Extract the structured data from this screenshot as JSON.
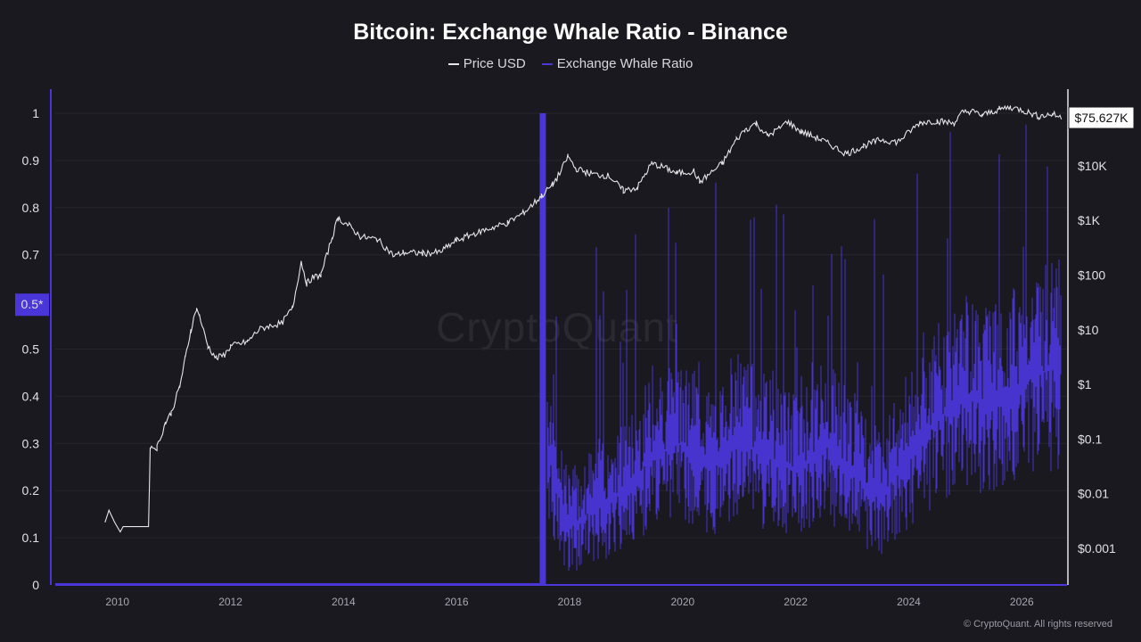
{
  "title": "Bitcoin: Exchange Whale Ratio - Binance",
  "legend": [
    {
      "label": "Price USD",
      "color": "#e6e6ea"
    },
    {
      "label": "Exchange Whale Ratio",
      "color": "#4a36d8"
    }
  ],
  "watermark": "CryptoQuant",
  "copyright": "© CryptoQuant. All rights reserved",
  "chart_data": {
    "type": "line",
    "title": "Bitcoin: Exchange Whale Ratio - Binance",
    "x_ticks": [
      "2010",
      "2012",
      "2014",
      "2016",
      "2018",
      "2020",
      "2022",
      "2024",
      "2026"
    ],
    "xlim": [
      2008.9,
      2026.8
    ],
    "left_axis": {
      "ticks": [
        "0",
        "0.1",
        "0.2",
        "0.3",
        "0.4",
        "0.5",
        "0.7",
        "0.8",
        "0.9",
        "1"
      ],
      "tick_values": [
        0,
        0.1,
        0.2,
        0.3,
        0.4,
        0.5,
        0.7,
        0.8,
        0.9,
        1
      ],
      "ylim": [
        0,
        1
      ],
      "marker_label": "0.5*",
      "marker_value": 0.595
    },
    "right_axis": {
      "scale": "log",
      "ticks": [
        "$0.001",
        "$0.01",
        "$0.1",
        "$1",
        "$10",
        "$100",
        "$1K",
        "$10K"
      ],
      "tick_values": [
        0.001,
        0.01,
        0.1,
        1,
        10,
        100,
        1000,
        10000
      ],
      "current_price_label": "$75.627K"
    },
    "series": [
      {
        "name": "Price USD",
        "color": "#e6e6ea",
        "axis": "right",
        "x": [
          2009.78,
          2009.85,
          2009.95,
          2010.05,
          2010.1,
          2010.2,
          2010.4,
          2010.55,
          2010.58,
          2010.7,
          2010.85,
          2010.95,
          2011.1,
          2011.2,
          2011.3,
          2011.4,
          2011.45,
          2011.6,
          2011.75,
          2011.9,
          2012.0,
          2012.3,
          2012.5,
          2012.7,
          2012.9,
          2013.1,
          2013.25,
          2013.35,
          2013.45,
          2013.6,
          2013.8,
          2013.9,
          2014.1,
          2014.3,
          2014.6,
          2014.9,
          2015.05,
          2015.4,
          2015.7,
          2016.0,
          2016.4,
          2016.9,
          2017.2,
          2017.5,
          2017.7,
          2017.85,
          2017.97,
          2018.1,
          2018.4,
          2018.7,
          2018.95,
          2019.2,
          2019.45,
          2019.65,
          2019.9,
          2020.2,
          2020.3,
          2020.7,
          2020.95,
          2021.1,
          2021.3,
          2021.5,
          2021.7,
          2021.85,
          2022.1,
          2022.45,
          2022.9,
          2023.2,
          2023.5,
          2023.8,
          2024.2,
          2024.5,
          2024.8,
          2024.95,
          2025.1,
          2025.3,
          2025.6,
          2025.8,
          2026.0,
          2026.3,
          2026.55,
          2026.7
        ],
        "values": [
          0.003,
          0.005,
          0.003,
          0.002,
          0.0025,
          0.0025,
          0.0025,
          0.0025,
          0.07,
          0.07,
          0.2,
          0.3,
          0.9,
          3,
          10,
          25,
          18,
          5,
          3,
          3.5,
          5,
          6,
          10,
          12,
          13,
          25,
          180,
          70,
          90,
          100,
          500,
          1100,
          800,
          500,
          450,
          220,
          260,
          250,
          260,
          430,
          620,
          900,
          1400,
          2800,
          4500,
          8000,
          15000,
          9000,
          7000,
          6500,
          3500,
          4000,
          11000,
          9500,
          7300,
          8000,
          5000,
          11000,
          30000,
          45000,
          60000,
          35000,
          48000,
          64000,
          42000,
          30000,
          16500,
          23000,
          30000,
          27000,
          62000,
          66000,
          60000,
          95000,
          100000,
          84000,
          108000,
          118000,
          105000,
          80000,
          88000,
          75627
        ]
      },
      {
        "name": "Exchange Whale Ratio",
        "color": "#4a36d8",
        "axis": "left",
        "x": [
          2009.0,
          2017.45,
          2017.5,
          2017.6,
          2017.8,
          2018.0,
          2018.5,
          2019.0,
          2019.5,
          2020.0,
          2020.5,
          2021.0,
          2021.5,
          2022.0,
          2022.5,
          2023.0,
          2023.5,
          2024.0,
          2024.5,
          2025.0,
          2025.5,
          2026.0,
          2026.3,
          2026.7
        ],
        "values": [
          0,
          0,
          1,
          0.3,
          0.2,
          0.12,
          0.17,
          0.2,
          0.28,
          0.3,
          0.25,
          0.31,
          0.27,
          0.24,
          0.3,
          0.25,
          0.18,
          0.28,
          0.35,
          0.4,
          0.38,
          0.43,
          0.45,
          0.46
        ]
      }
    ]
  }
}
